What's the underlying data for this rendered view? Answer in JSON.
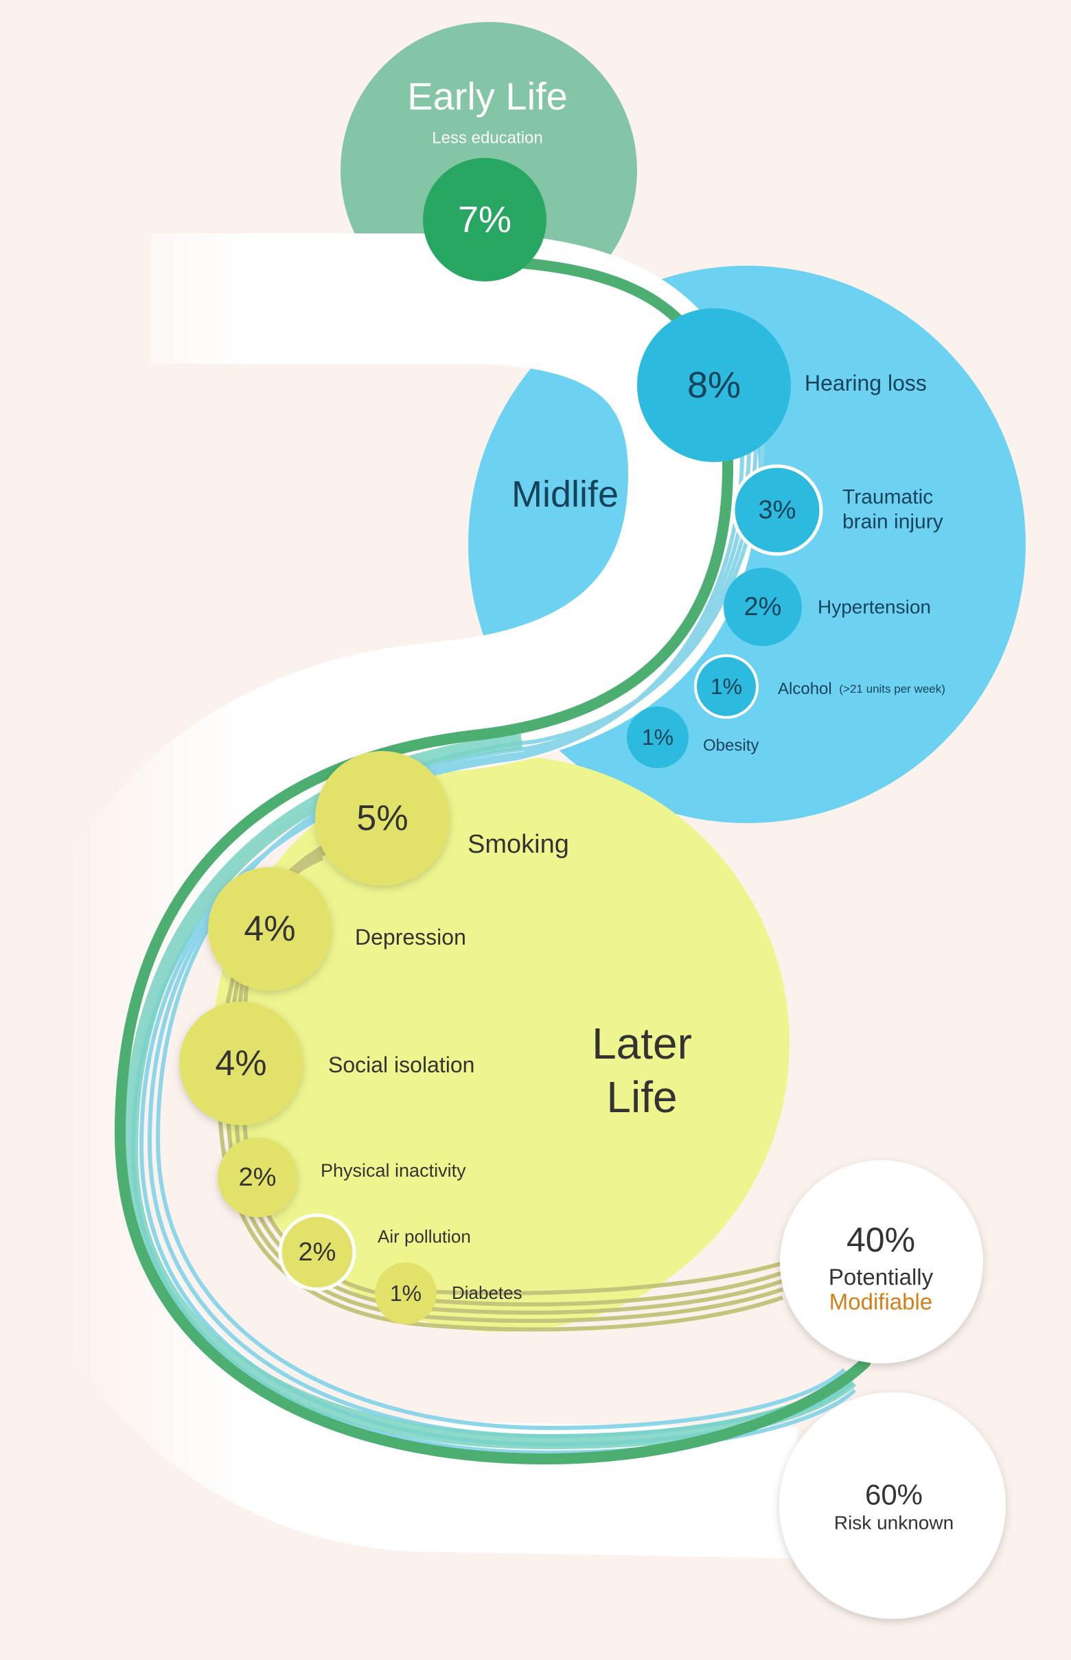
{
  "stages": {
    "early": {
      "title": "Early Life",
      "subtitle": "Less education",
      "color": "#84c5a5"
    },
    "mid": {
      "title": "Midlife",
      "color": "#6dd2f2"
    },
    "later": {
      "title_line1": "Later",
      "title_line2": "Life",
      "color": "#eef58e"
    }
  },
  "factors": [
    {
      "id": "less-education",
      "stage": "early",
      "value": "7%",
      "label": ""
    },
    {
      "id": "hearing-loss",
      "stage": "mid",
      "value": "8%",
      "label": "Hearing loss"
    },
    {
      "id": "traumatic-brain-injury",
      "stage": "mid",
      "value": "3%",
      "label": "Traumatic",
      "label2": "brain injury"
    },
    {
      "id": "hypertension",
      "stage": "mid",
      "value": "2%",
      "label": "Hypertension"
    },
    {
      "id": "alcohol",
      "stage": "mid",
      "value": "1%",
      "label": "Alcohol",
      "note": "(>21 units per week)"
    },
    {
      "id": "obesity",
      "stage": "mid",
      "value": "1%",
      "label": "Obesity"
    },
    {
      "id": "smoking",
      "stage": "later",
      "value": "5%",
      "label": "Smoking"
    },
    {
      "id": "depression",
      "stage": "later",
      "value": "4%",
      "label": "Depression"
    },
    {
      "id": "social-isolation",
      "stage": "later",
      "value": "4%",
      "label": "Social isolation"
    },
    {
      "id": "physical-inactivity",
      "stage": "later",
      "value": "2%",
      "label": "Physical inactivity"
    },
    {
      "id": "air-pollution",
      "stage": "later",
      "value": "2%",
      "label": "Air pollution"
    },
    {
      "id": "diabetes",
      "stage": "later",
      "value": "1%",
      "label": "Diabetes"
    }
  ],
  "summary": {
    "modifiable": {
      "value": "40%",
      "line1": "Potentially",
      "line2": "Modifiable",
      "accent": "#d3801a"
    },
    "unknown": {
      "value": "60%",
      "label": "Risk unknown"
    }
  },
  "colors": {
    "background": "#fcf2ed",
    "early_node": "#27a761",
    "mid_node": "#2cbade",
    "later_node": "#e2e26a",
    "green_band": "#4cae71",
    "blue_band": "#8dd6ea",
    "olive_band": "#c4c47c"
  }
}
